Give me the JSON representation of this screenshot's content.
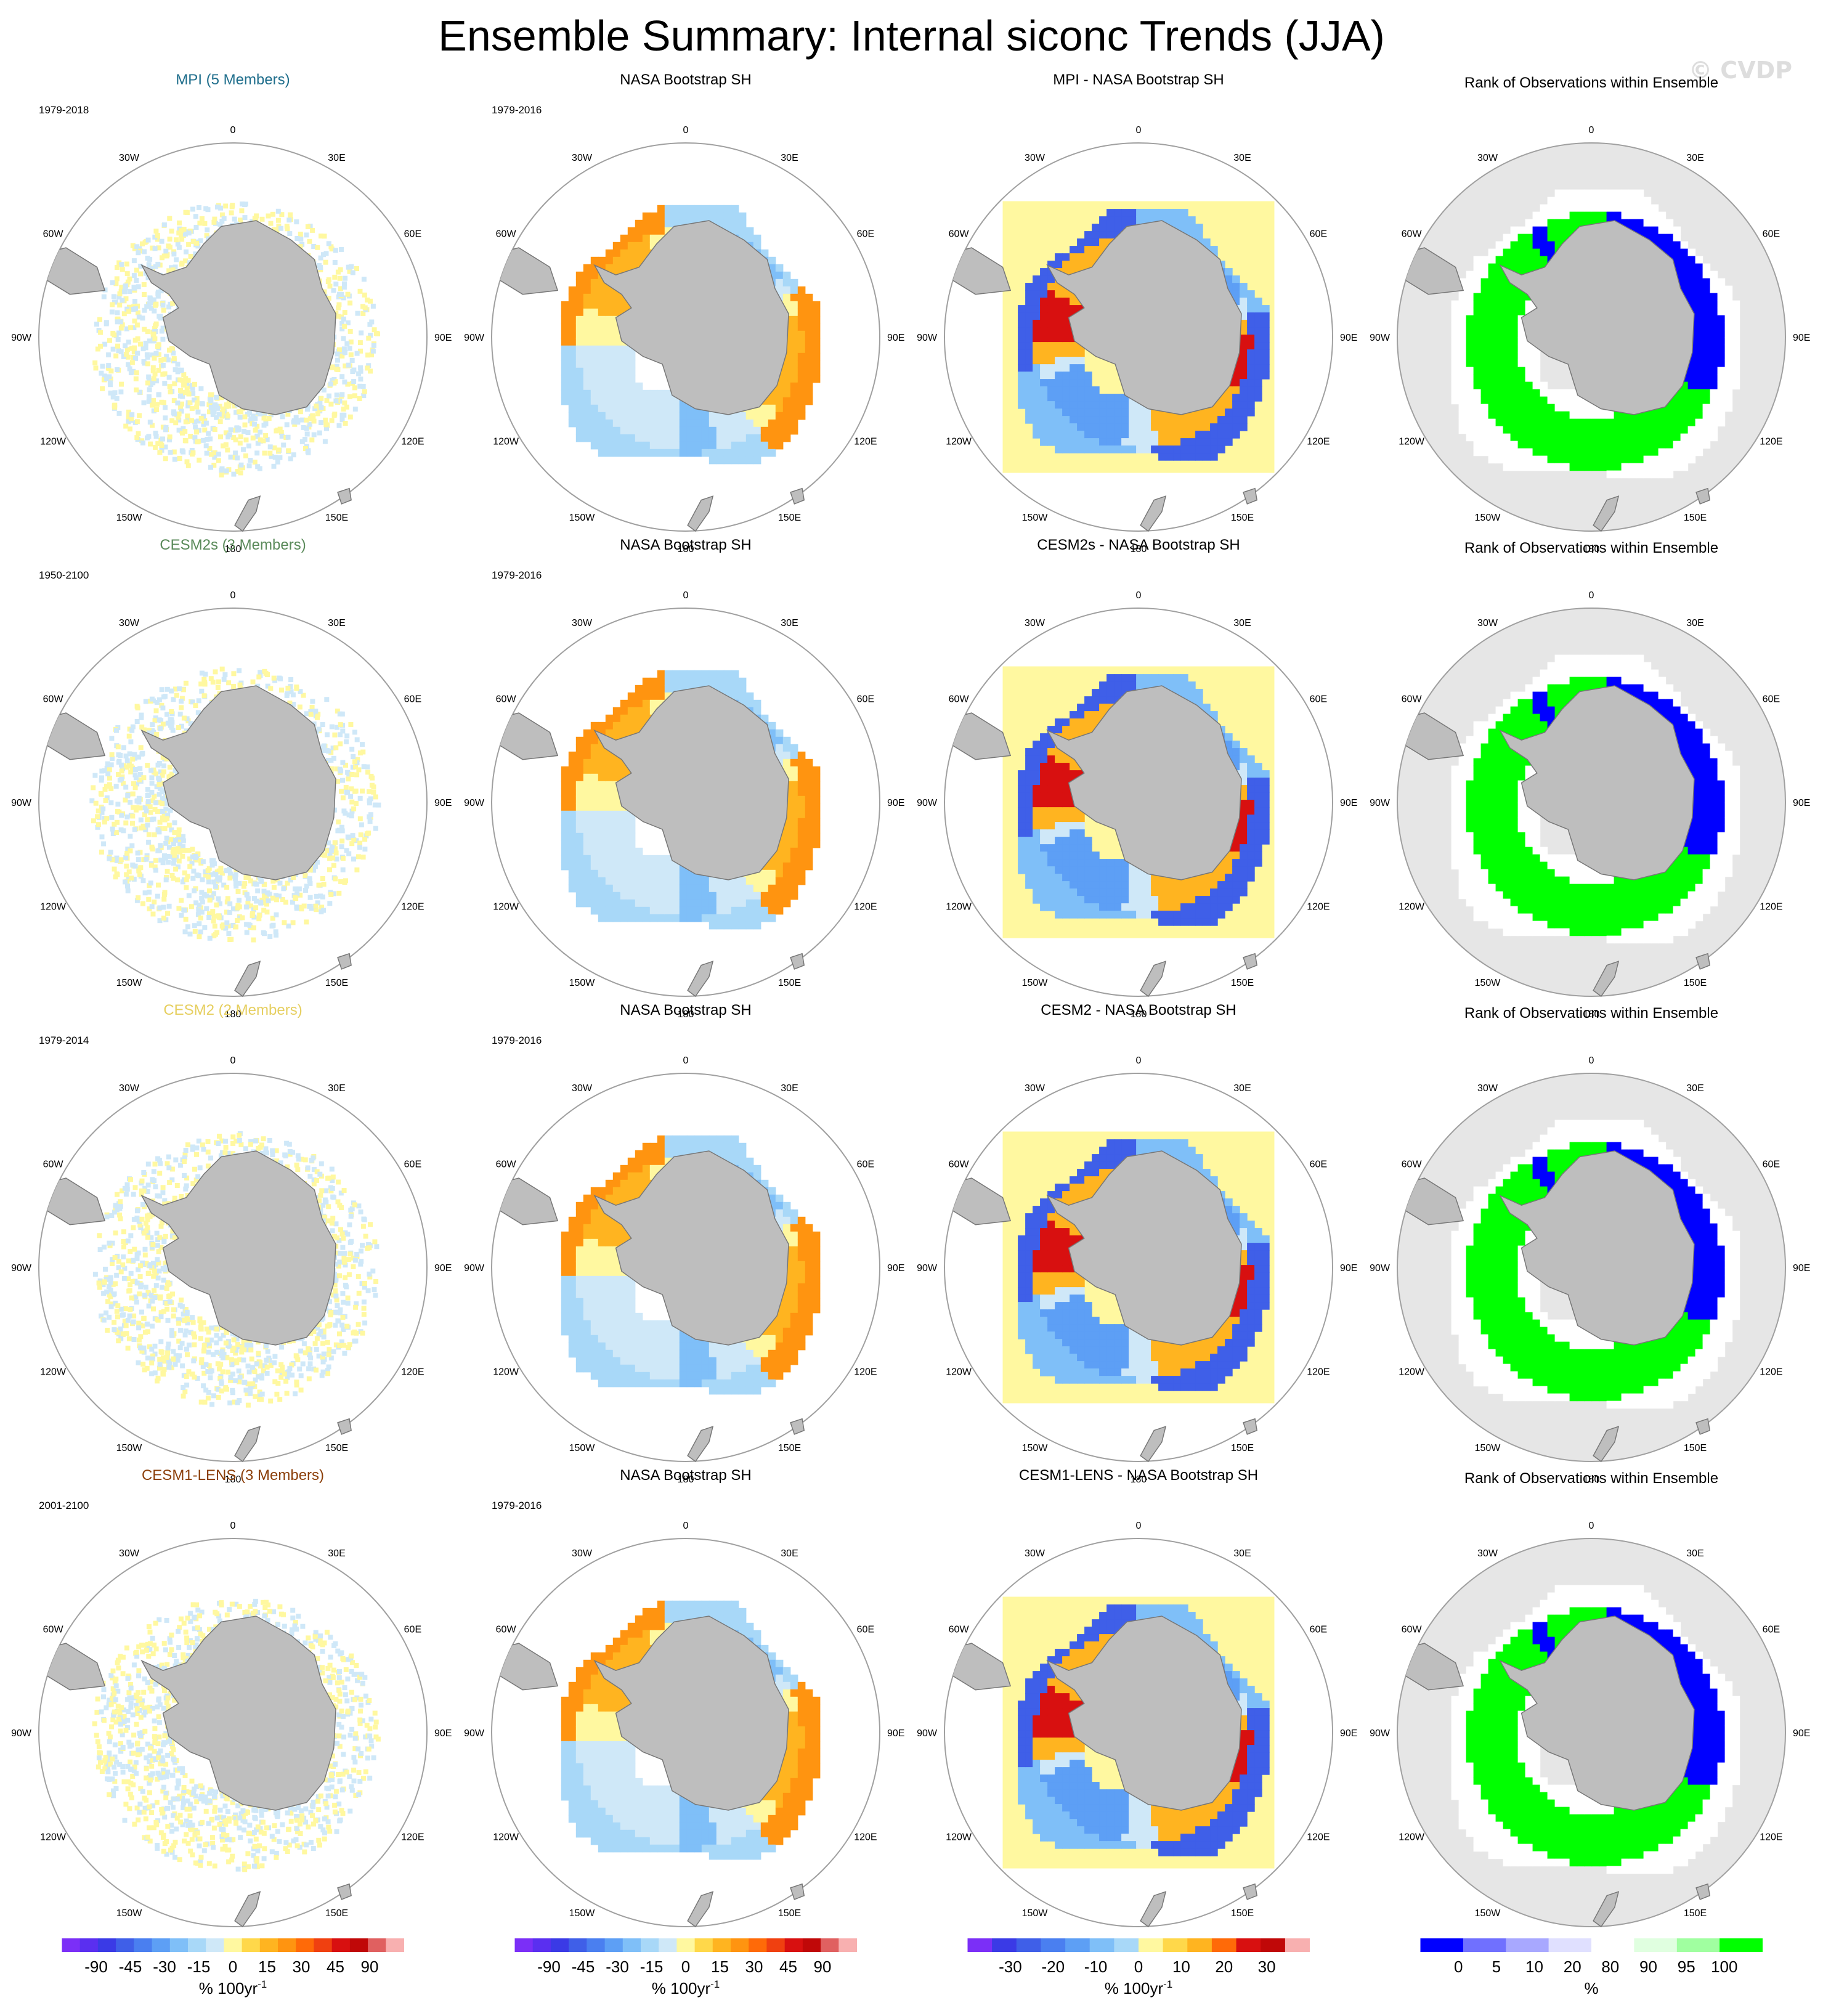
{
  "title": "Ensemble Summary: Internal siconc Trends (JJA)",
  "watermark": "© CVDP",
  "colors": {
    "land": "#bebebe",
    "ocean_rank": "#e6e6e6",
    "grid_circle": "#a0a0a0",
    "MPI": "#1f6e8c",
    "CESM2s": "#5a8a5a",
    "CESM2": "#e6cf60",
    "CESM1-LENS": "#8b3f0a",
    "rank_low": "#0000ff",
    "rank_high": "#00ff00",
    "rank_mid": "#ffffff"
  },
  "lon_labels": [
    "0",
    "30E",
    "60E",
    "90E",
    "120E",
    "150E",
    "180",
    "150W",
    "120W",
    "90W",
    "60W",
    "30W"
  ],
  "chart_data": {
    "type": "heatmap",
    "projection": "south polar stereographic",
    "variable": "siconc",
    "season": "JJA",
    "rows": [
      {
        "model": "MPI (5 Members)",
        "model_key": "MPI",
        "model_period": "1979-2018",
        "obs_title": "NASA Bootstrap SH",
        "obs_period": "1979-2016",
        "diff_title": "MPI - NASA Bootstrap SH",
        "rank_title": "Rank of Observations within Ensemble"
      },
      {
        "model": "CESM2s (3 Members)",
        "model_key": "CESM2s",
        "model_period": "1950-2100",
        "obs_title": "NASA Bootstrap SH",
        "obs_period": "1979-2016",
        "diff_title": "CESM2s - NASA Bootstrap SH",
        "rank_title": "Rank of Observations within Ensemble"
      },
      {
        "model": "CESM2 (2 Members)",
        "model_key": "CESM2",
        "model_period": "1979-2014",
        "obs_title": "NASA Bootstrap SH",
        "obs_period": "1979-2016",
        "diff_title": "CESM2 - NASA Bootstrap SH",
        "rank_title": "Rank of Observations within Ensemble"
      },
      {
        "model": "CESM1-LENS (3 Members)",
        "model_key": "CESM1-LENS",
        "model_period": "2001-2100",
        "obs_title": "NASA Bootstrap SH",
        "obs_period": "1979-2016",
        "diff_title": "CESM1-LENS - NASA Bootstrap SH",
        "rank_title": "Rank of Observations within Ensemble"
      }
    ],
    "colorbars": [
      {
        "key": "trend",
        "unit": "% 100yr",
        "unit_exponent": "-1",
        "tick_labels": [
          "-90",
          "-45",
          "-30",
          "-15",
          "0",
          "15",
          "30",
          "45",
          "90"
        ],
        "colors": [
          "#7b2ff7",
          "#5a2ff0",
          "#3a3ae6",
          "#3f5fe8",
          "#4a7ff0",
          "#5d9ff5",
          "#7fbff8",
          "#a8d8f8",
          "#cfe8f8",
          "#fff8a0",
          "#ffd84a",
          "#ffb420",
          "#ff9410",
          "#ff6a08",
          "#f04010",
          "#d81010",
          "#c00808",
          "#e06060",
          "#f8b0b0"
        ]
      },
      {
        "key": "trend",
        "unit": "% 100yr",
        "unit_exponent": "-1",
        "tick_labels": [
          "-90",
          "-45",
          "-30",
          "-15",
          "0",
          "15",
          "30",
          "45",
          "90"
        ],
        "colors": [
          "#7b2ff7",
          "#5a2ff0",
          "#3a3ae6",
          "#3f5fe8",
          "#4a7ff0",
          "#5d9ff5",
          "#7fbff8",
          "#a8d8f8",
          "#cfe8f8",
          "#fff8a0",
          "#ffd84a",
          "#ffb420",
          "#ff9410",
          "#ff6a08",
          "#f04010",
          "#d81010",
          "#c00808",
          "#e06060",
          "#f8b0b0"
        ]
      },
      {
        "key": "diff",
        "unit": "% 100yr",
        "unit_exponent": "-1",
        "tick_labels": [
          "-30",
          "-20",
          "-10",
          "0",
          "10",
          "20",
          "30"
        ],
        "colors": [
          "#7b2ff7",
          "#3a3ae6",
          "#3f5fe8",
          "#4a7ff0",
          "#5d9ff5",
          "#7fbff8",
          "#a8d8f8",
          "#fff8a0",
          "#ffd84a",
          "#ffb420",
          "#ff6a08",
          "#d81010",
          "#c00808",
          "#f8b0b0"
        ]
      },
      {
        "key": "rank",
        "unit": "%",
        "unit_exponent": "",
        "tick_labels": [
          "0",
          "5",
          "10",
          "20",
          "80",
          "90",
          "95",
          "100"
        ],
        "colors": [
          "#0000ff",
          "#7070ff",
          "#a8a8ff",
          "#e0e0ff",
          "#ffffff",
          "#e0ffe0",
          "#a0ffa0",
          "#00ff00"
        ]
      }
    ]
  }
}
